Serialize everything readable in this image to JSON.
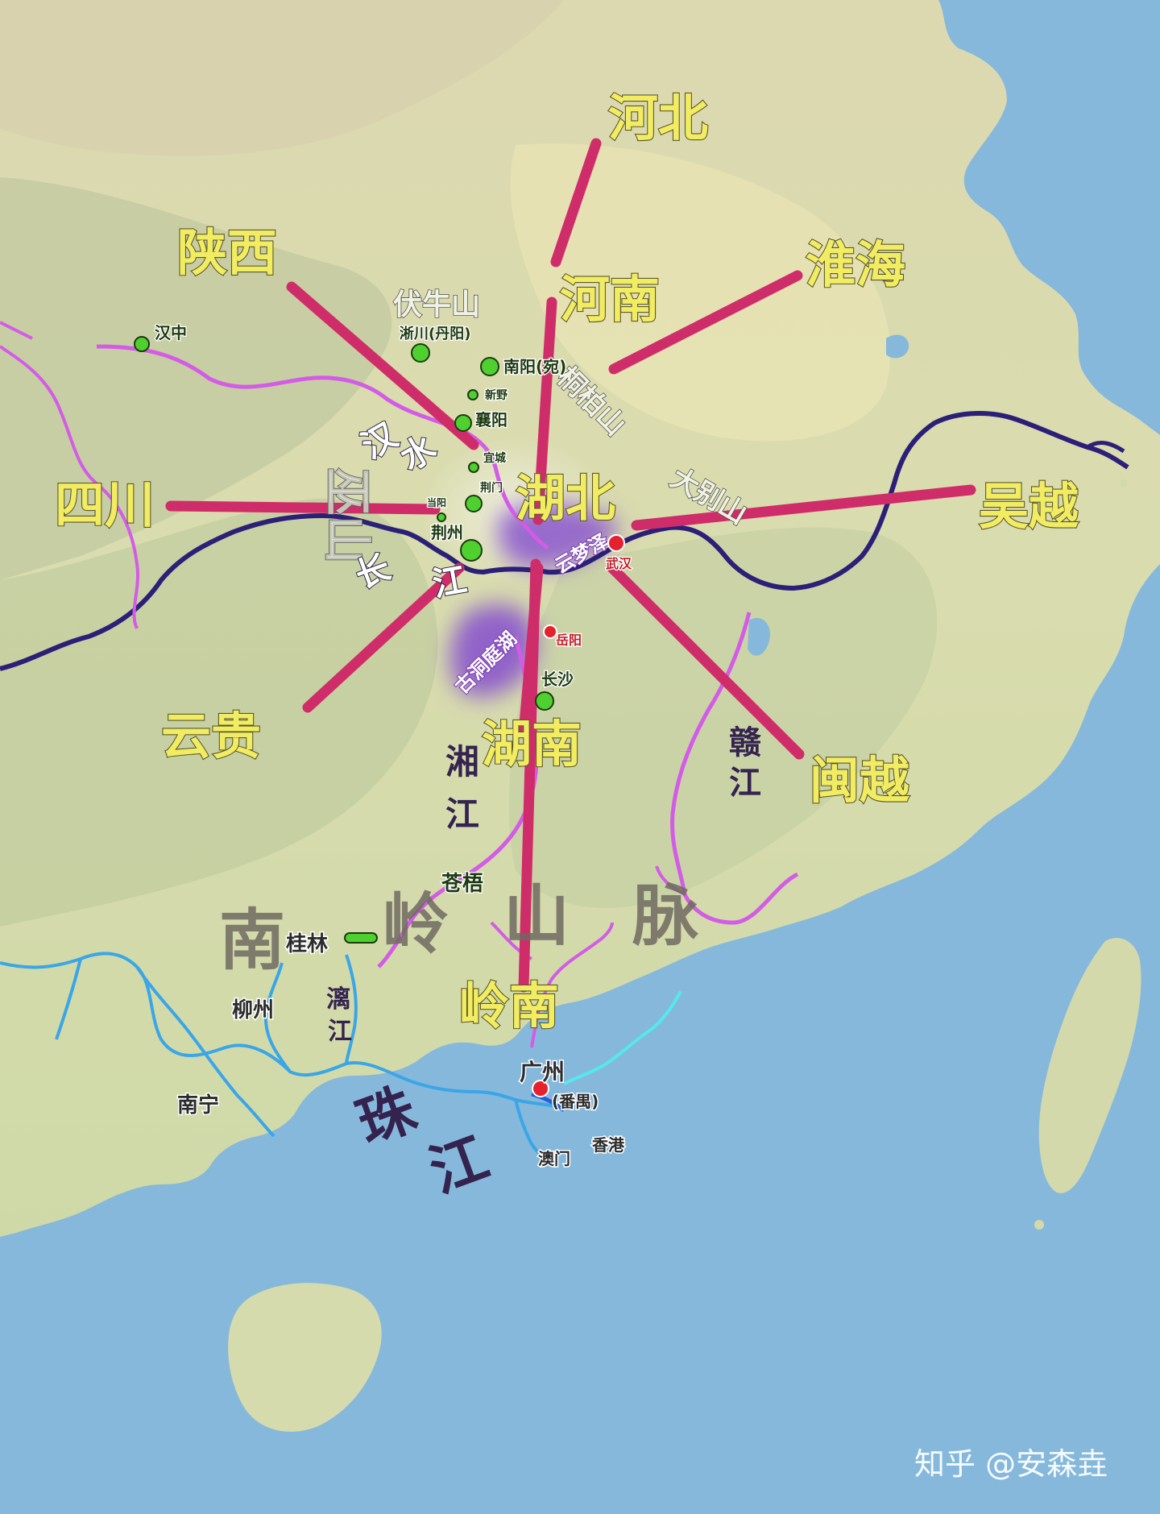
{
  "map": {
    "regions": {
      "hebei": "河北",
      "henan": "河南",
      "shaanxi": "陕西",
      "huaihai": "淮海",
      "sichuan": "四川",
      "hubei": "湖北",
      "wuyue": "吴越",
      "yungui": "云贵",
      "hunan": "湖南",
      "minyue": "闽越",
      "lingnan": "岭南"
    },
    "mountains": {
      "funiu": "伏牛山",
      "tongbai": "桐柏山",
      "dabie": "大别山",
      "wu": "巫山",
      "nanling": [
        "南",
        "岭",
        "山",
        "脉"
      ]
    },
    "rivers": {
      "hanshui": [
        "汉",
        "水"
      ],
      "changjiang": [
        "长",
        "江"
      ],
      "xiangjiang": [
        "湘",
        "江"
      ],
      "ganjiang": [
        "赣",
        "江"
      ],
      "lijiang": [
        "漓",
        "江"
      ],
      "zhujiang": [
        "珠",
        "江"
      ]
    },
    "lakes": {
      "yunmengze": "云梦泽",
      "dongting": "古洞庭湖"
    },
    "places_green": {
      "hanzhong": "汉中",
      "xichuan": "淅川(丹阳)",
      "nanyang": "南阳(宛)",
      "xinye": "新野",
      "xiangyang": "襄阳",
      "yicheng": "宜城",
      "jingmen": "荆门",
      "dangyang": "当阳",
      "jingzhou": "荆州",
      "changsha": "长沙",
      "cangwu": "苍梧",
      "guilin": "桂林"
    },
    "places_red": {
      "wuhan": "武汉",
      "yueyang": "岳阳",
      "guangzhou": "广州",
      "panyu": "(番禺)"
    },
    "places_plain": {
      "liuzhou": "柳州",
      "nanning": "南宁",
      "aomen": "澳门",
      "xianggang": "香港"
    },
    "watermark": "知乎 @安森垚"
  },
  "colors": {
    "spoke": "#cf2d6a",
    "region_text": "#f2ec62",
    "yangtze": "#2c1f78",
    "tributary": "#d35ce6",
    "pearl_river": "#3aa6e6",
    "lake": "#8a55cc",
    "sea": "#86b8dc",
    "land": "#e8e2b0"
  }
}
